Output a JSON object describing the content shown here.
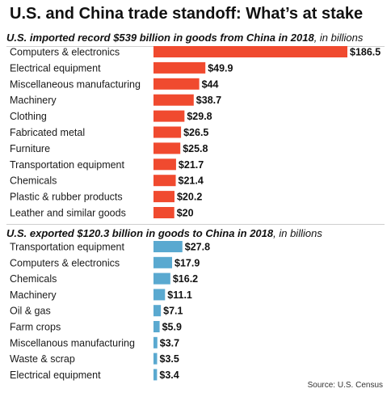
{
  "title": "U.S. and China trade standoff: What’s at stake",
  "source": "Source: U.S. Census",
  "colors": {
    "imports": "#f04a2f",
    "exports": "#5aa9d0"
  },
  "chart_data": [
    {
      "type": "bar",
      "orientation": "horizontal",
      "title_main": "U.S. imported record $539 billion in goods from China in 2018",
      "title_unit": ", in billions",
      "categories": [
        "Computers & electronics",
        "Electrical equipment",
        "Miscellaneous manufacturing",
        "Machinery",
        "Clothing",
        "Fabricated metal",
        "Furniture",
        "Transportation equipment",
        "Chemicals",
        "Plastic & rubber products",
        "Leather and similar goods"
      ],
      "values": [
        186.5,
        49.9,
        44,
        38.7,
        29.8,
        26.5,
        25.8,
        21.7,
        21.4,
        20.2,
        20
      ],
      "labels": [
        "$186.5",
        "$49.9",
        "$44",
        "$38.7",
        "$29.8",
        "$26.5",
        "$25.8",
        "$21.7",
        "$21.4",
        "$20.2",
        "$20"
      ],
      "grid": false
    },
    {
      "type": "bar",
      "orientation": "horizontal",
      "title_main": "U.S. exported $120.3 billion in goods to China in 2018",
      "title_unit": ", in billions",
      "categories": [
        "Transportation equipment",
        "Computers & electronics",
        "Chemicals",
        "Machinery",
        "Oil & gas",
        "Farm crops",
        "Miscellanous manufacturing",
        "Waste & scrap",
        "Electrical equipment"
      ],
      "values": [
        27.8,
        17.9,
        16.2,
        11.1,
        7.1,
        5.9,
        3.7,
        3.5,
        3.4
      ],
      "labels": [
        "$27.8",
        "$17.9",
        "$16.2",
        "$11.1",
        "$7.1",
        "$5.9",
        "$3.7",
        "$3.5",
        "$3.4"
      ],
      "grid": false
    }
  ]
}
